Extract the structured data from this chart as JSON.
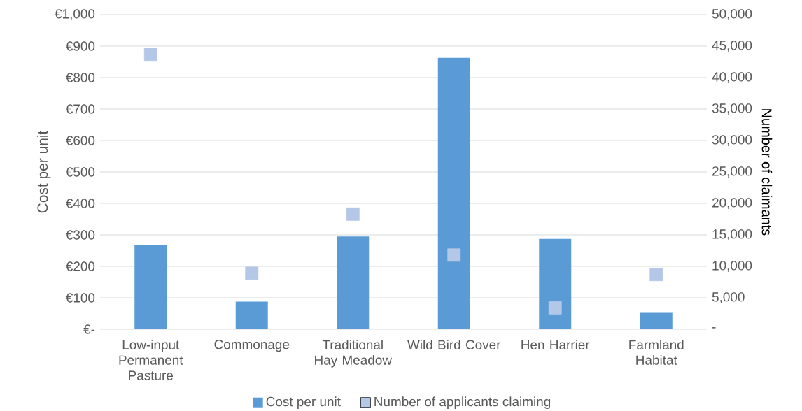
{
  "chart_data": {
    "type": "bar",
    "categories": [
      "Low-input Permanent Pasture",
      "Commonage",
      "Traditional Hay Meadow",
      "Wild Bird Cover",
      "Hen Harrier",
      "Farmland Habitat"
    ],
    "series": [
      {
        "name": "Cost per unit",
        "color": "#5b9bd5",
        "values": [
          267,
          88,
          295,
          863,
          287,
          52
        ]
      },
      {
        "name": "Number of applicants claiming",
        "type": "scatter",
        "axis": "y2",
        "color": "#b4c7e7",
        "values": [
          43700,
          8900,
          18300,
          11800,
          3400,
          8700
        ]
      }
    ],
    "ylabel": "Cost per unit",
    "y2label": "Number of claimants",
    "ylim": [
      0,
      1000
    ],
    "yticks": [
      {
        "value": 0,
        "label": "€-"
      },
      {
        "value": 100,
        "label": "€100"
      },
      {
        "value": 200,
        "label": "€200"
      },
      {
        "value": 300,
        "label": "€300"
      },
      {
        "value": 400,
        "label": "€400"
      },
      {
        "value": 500,
        "label": "€500"
      },
      {
        "value": 600,
        "label": "€600"
      },
      {
        "value": 700,
        "label": "€700"
      },
      {
        "value": 800,
        "label": "€800"
      },
      {
        "value": 900,
        "label": "€900"
      },
      {
        "value": 1000,
        "label": "€1,000"
      }
    ],
    "y2lim": [
      0,
      50000
    ],
    "y2ticks": [
      {
        "value": 0,
        "label": "-"
      },
      {
        "value": 5000,
        "label": "5,000"
      },
      {
        "value": 10000,
        "label": "10,000"
      },
      {
        "value": 15000,
        "label": "15,000"
      },
      {
        "value": 20000,
        "label": "20,000"
      },
      {
        "value": 25000,
        "label": "25,000"
      },
      {
        "value": 30000,
        "label": "30,000"
      },
      {
        "value": 35000,
        "label": "35,000"
      },
      {
        "value": 40000,
        "label": "40,000"
      },
      {
        "value": 45000,
        "label": "45,000"
      },
      {
        "value": 50000,
        "label": "50,000"
      }
    ],
    "grid": "y",
    "legend": "bottom",
    "marker": "square"
  }
}
